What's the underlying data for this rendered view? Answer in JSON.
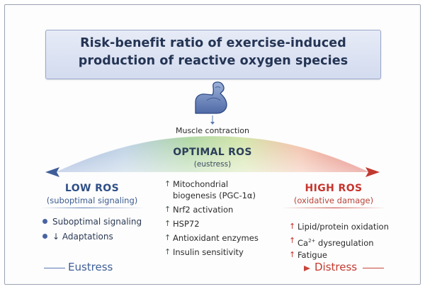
{
  "title": {
    "line1": "Risk-benefit ratio of exercise-induced",
    "line2": "production of reactive oxygen species"
  },
  "icons": {
    "muscle": "flexed-arm-icon",
    "down_arrow": "arrow-down-icon",
    "up_arrow": "arrow-up-icon",
    "bullet": "bullet-dot-icon"
  },
  "colors": {
    "low": "#4a64a0",
    "optimal": "#8fc77a",
    "high": "#c6342c",
    "title_bg": "#d3dbef"
  },
  "trigger": {
    "label": "Muscle contraction"
  },
  "optimal": {
    "title": "OPTIMAL ROS",
    "subtitle": "(eustress)",
    "items": [
      {
        "line1": "Mitochondrial",
        "line2": "biogenesis (PGC-1α)"
      },
      {
        "line1": "Nrf2 activation"
      },
      {
        "line1": "HSP72"
      },
      {
        "line1": "Antioxidant enzymes"
      },
      {
        "line1": "Insulin sensitivity"
      }
    ]
  },
  "low": {
    "title": "LOW ROS",
    "subtitle": "(suboptimal signaling)",
    "items": [
      {
        "text": "Suboptimal signaling"
      },
      {
        "text": "↓ Adaptations"
      }
    ]
  },
  "high": {
    "title": "HIGH ROS",
    "subtitle": "(oxidative damage)",
    "items": [
      {
        "text": "Lipid/protein oxidation"
      },
      {
        "prefix": "Ca",
        "sup": "2+",
        "suffix": " dysregulation"
      },
      {
        "text": "Fatigue"
      }
    ]
  },
  "continuum": {
    "left": "Eustress",
    "right": "Distress"
  }
}
